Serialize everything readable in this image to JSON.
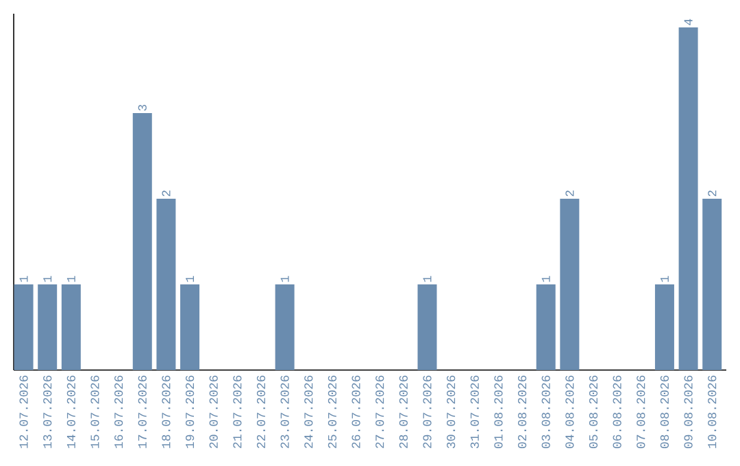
{
  "chart_data": {
    "type": "bar",
    "categories": [
      "12.07.2026",
      "13.07.2026",
      "14.07.2026",
      "15.07.2026",
      "16.07.2026",
      "17.07.2026",
      "18.07.2026",
      "19.07.2026",
      "20.07.2026",
      "21.07.2026",
      "22.07.2026",
      "23.07.2026",
      "24.07.2026",
      "25.07.2026",
      "26.07.2026",
      "27.07.2026",
      "28.07.2026",
      "29.07.2026",
      "30.07.2026",
      "31.07.2026",
      "01.08.2026",
      "02.08.2026",
      "03.08.2026",
      "04.08.2026",
      "05.08.2026",
      "06.08.2026",
      "07.08.2026",
      "08.08.2026",
      "09.08.2026",
      "10.08.2026"
    ],
    "values": [
      1,
      1,
      1,
      0,
      0,
      3,
      2,
      1,
      0,
      0,
      0,
      1,
      0,
      0,
      0,
      0,
      0,
      1,
      0,
      0,
      0,
      0,
      1,
      2,
      0,
      0,
      0,
      1,
      4,
      2
    ],
    "value_labels": [
      "1",
      "1",
      "1",
      null,
      null,
      "3",
      "2",
      "1",
      null,
      null,
      null,
      "1",
      null,
      null,
      null,
      null,
      null,
      "1",
      null,
      null,
      null,
      null,
      "1",
      "2",
      null,
      null,
      null,
      "1",
      "4",
      "2"
    ],
    "color": "#6a8caf"
  }
}
